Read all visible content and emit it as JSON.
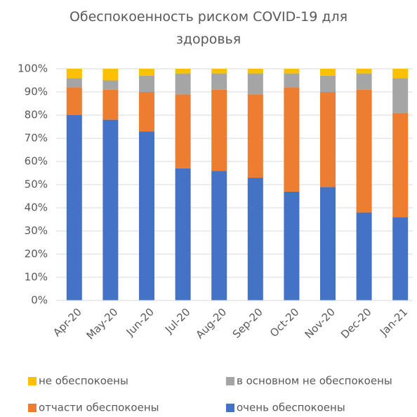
{
  "chart_data": {
    "type": "stacked_bar",
    "title": "Обеспокоенность риском COVID-19 для здоровья",
    "categories": [
      "Apr-20",
      "May-20",
      "Jun-20",
      "Jul-20",
      "Aug-20",
      "Sep-20",
      "Oct-20",
      "Nov-20",
      "Dec-20",
      "Jan-21"
    ],
    "series": [
      {
        "name": "очень обеспокоены",
        "color": "#4472c4",
        "values": [
          80,
          78,
          73,
          57,
          56,
          53,
          47,
          49,
          38,
          36
        ]
      },
      {
        "name": "отчасти обеспокоены",
        "color": "#ed7d31",
        "values": [
          12,
          13,
          17,
          32,
          35,
          36,
          45,
          41,
          53,
          45
        ]
      },
      {
        "name": "в основном не обеспокоены",
        "color": "#a5a5a5",
        "values": [
          4,
          4,
          7,
          9,
          7,
          9,
          6,
          7,
          7,
          15
        ]
      },
      {
        "name": "не обеспокоены",
        "color": "#ffc000",
        "values": [
          4,
          5,
          3,
          2,
          2,
          2,
          2,
          3,
          2,
          4
        ]
      }
    ],
    "ylim": [
      0,
      100
    ],
    "yticks": [
      {
        "value": 0,
        "label": "0%"
      },
      {
        "value": 10,
        "label": "10%"
      },
      {
        "value": 20,
        "label": "20%"
      },
      {
        "value": 30,
        "label": "30%"
      },
      {
        "value": 40,
        "label": "40%"
      },
      {
        "value": 50,
        "label": "50%"
      },
      {
        "value": 60,
        "label": "60%"
      },
      {
        "value": 70,
        "label": "70%"
      },
      {
        "value": 80,
        "label": "80%"
      },
      {
        "value": 90,
        "label": "90%"
      },
      {
        "value": 100,
        "label": "100%"
      }
    ],
    "grid": true,
    "legend": "bottom"
  }
}
